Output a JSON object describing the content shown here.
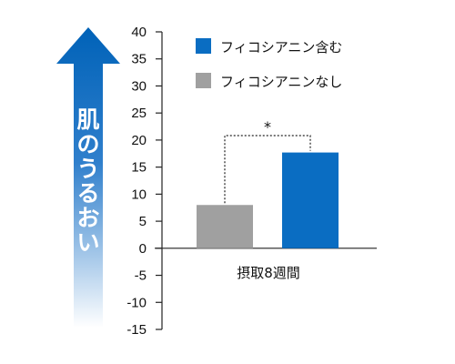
{
  "chart_data": {
    "type": "bar",
    "categories": [
      "摂取8週間"
    ],
    "series": [
      {
        "name": "フィコシアニン含む",
        "values": [
          17.7
        ],
        "color": "#0a6dc2"
      },
      {
        "name": "フィコシアニンなし",
        "values": [
          8.0
        ],
        "color": "#a0a0a0"
      }
    ],
    "ylabel": "肌のうるおい",
    "ylim": [
      -15,
      40
    ],
    "yticks": [
      40,
      35,
      30,
      25,
      20,
      15,
      10,
      5,
      0,
      -5,
      -10,
      -15
    ],
    "legend_position": "top-right",
    "significance_mark": "*",
    "grid": false
  }
}
